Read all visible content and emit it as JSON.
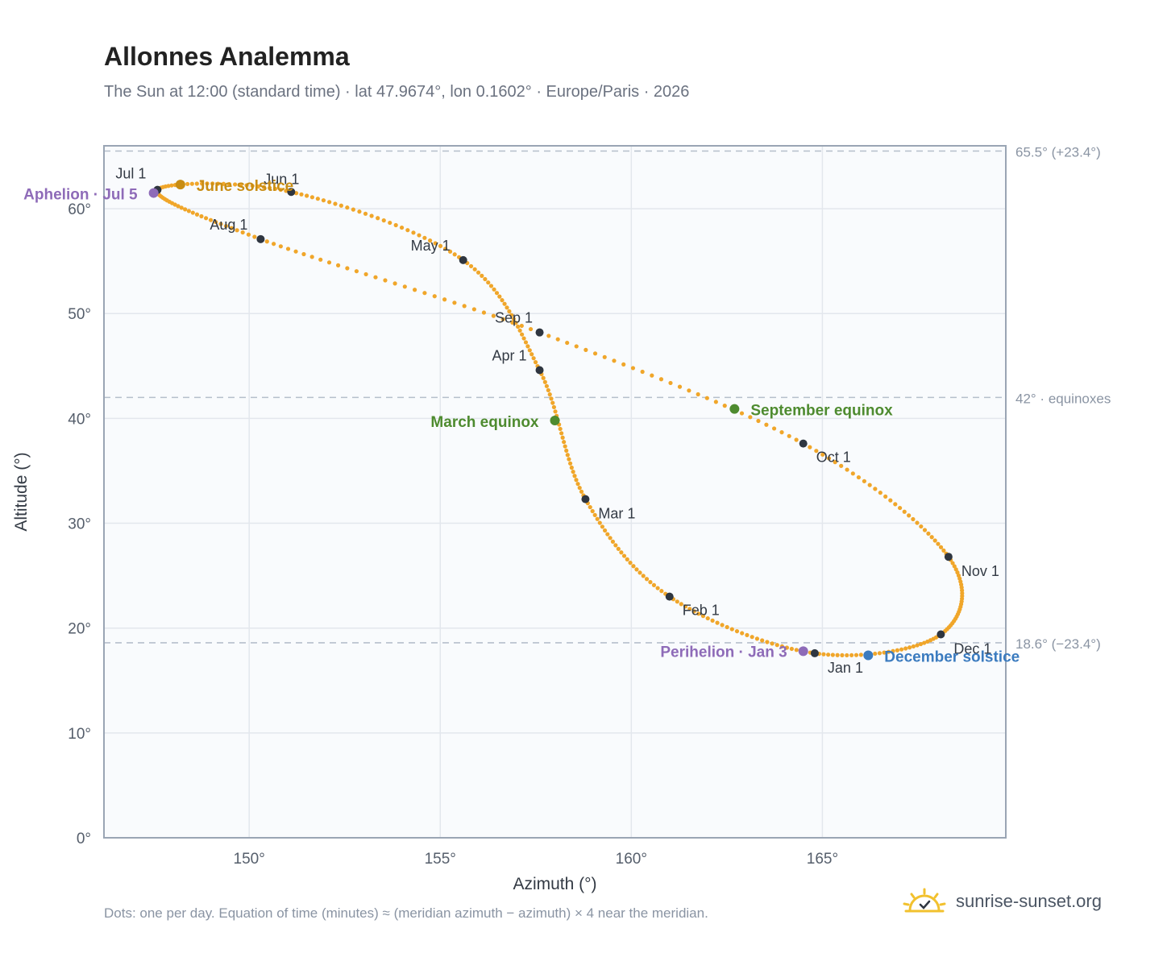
{
  "header": {
    "title": "Allonnes Analemma",
    "subtitle": "The Sun at 12:00 (standard time) · lat 47.9674°, lon 0.1602° · Europe/Paris · 2026"
  },
  "footer": {
    "note": "Dots: one per day. Equation of time (minutes) ≈ (meridian azimuth − azimuth) × 4 near the meridian.",
    "brand": "sunrise-sunset.org",
    "brand_icon": "sun-check-icon"
  },
  "colors": {
    "curve": "#f0a62a",
    "month_dot": "#2f3640",
    "equinox": "#4e8b2f",
    "june_solstice": "#c88d14",
    "december_solstice": "#3b7bbf",
    "apsis": "#8e6bb8",
    "plot_bg": "#f9fbfd",
    "frame": "#9aa5b4",
    "grid": "#e3e7ed",
    "ref_line": "#b5bfcb"
  },
  "chart_data": {
    "type": "scatter",
    "xlabel": "Azimuth (°)",
    "ylabel": "Altitude (°)",
    "xlim": [
      146.2,
      169.8
    ],
    "ylim": [
      0,
      66
    ],
    "xticks": [
      150,
      155,
      160,
      165
    ],
    "xtick_labels": [
      "150°",
      "155°",
      "160°",
      "165°"
    ],
    "yticks": [
      0,
      10,
      20,
      30,
      40,
      50,
      60
    ],
    "ytick_labels": [
      "0°",
      "10°",
      "20°",
      "30°",
      "40°",
      "50°",
      "60°"
    ],
    "grid": true,
    "reference_lines": [
      {
        "y": 65.5,
        "label": "65.5° (+23.4°)"
      },
      {
        "y": 42.0,
        "label": "42° · equinoxes"
      },
      {
        "y": 18.6,
        "label": "18.6° (−23.4°)"
      }
    ],
    "month_markers": [
      {
        "label": "Jan 1",
        "az": 164.8,
        "alt": 17.6
      },
      {
        "label": "Feb 1",
        "az": 161.0,
        "alt": 23.0
      },
      {
        "label": "Mar 1",
        "az": 158.8,
        "alt": 32.3
      },
      {
        "label": "Apr 1",
        "az": 157.6,
        "alt": 44.6
      },
      {
        "label": "May 1",
        "az": 155.6,
        "alt": 55.1
      },
      {
        "label": "Jun 1",
        "az": 151.1,
        "alt": 61.6
      },
      {
        "label": "Jul 1",
        "az": 147.6,
        "alt": 61.8
      },
      {
        "label": "Aug 1",
        "az": 150.3,
        "alt": 57.1
      },
      {
        "label": "Sep 1",
        "az": 157.6,
        "alt": 48.2
      },
      {
        "label": "Oct 1",
        "az": 164.5,
        "alt": 37.6
      },
      {
        "label": "Nov 1",
        "az": 168.3,
        "alt": 26.8
      },
      {
        "label": "Dec 1",
        "az": 168.1,
        "alt": 19.4
      }
    ],
    "events": [
      {
        "label": "Aphelion · Jul 5",
        "az": 147.5,
        "alt": 61.5,
        "kind": "apsis"
      },
      {
        "label": "June solstice",
        "az": 148.2,
        "alt": 62.3,
        "kind": "june_solstice"
      },
      {
        "label": "March equinox",
        "az": 158.0,
        "alt": 39.8,
        "kind": "equinox"
      },
      {
        "label": "September equinox",
        "az": 162.7,
        "alt": 40.9,
        "kind": "equinox"
      },
      {
        "label": "Perihelion · Jan 3",
        "az": 164.5,
        "alt": 17.8,
        "kind": "apsis"
      },
      {
        "label": "December solstice",
        "az": 166.2,
        "alt": 17.4,
        "kind": "december_solstice"
      }
    ]
  }
}
